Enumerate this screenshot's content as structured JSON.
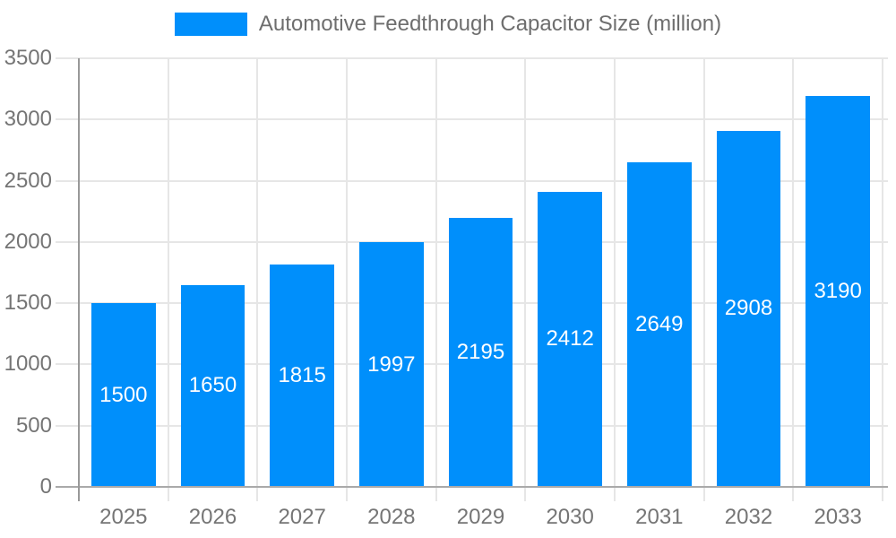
{
  "legend": {
    "label": "Automotive Feedthrough Capacitor Size (million)"
  },
  "chart_data": {
    "type": "bar",
    "title": "Automotive Feedthrough Capacitor Size (million)",
    "categories": [
      "2025",
      "2026",
      "2027",
      "2028",
      "2029",
      "2030",
      "2031",
      "2032",
      "2033"
    ],
    "values": [
      1500,
      1650,
      1815,
      1997,
      2195,
      2412,
      2649,
      2908,
      3190
    ],
    "xlabel": "",
    "ylabel": "",
    "ylim": [
      0,
      3500
    ],
    "y_ticks": [
      0,
      500,
      1000,
      1500,
      2000,
      2500,
      3000,
      3500
    ],
    "grid": true,
    "legend_position": "top",
    "colors": {
      "bar": "#008FFB",
      "value_label": "#FFFFFF",
      "axis_label": "#757575",
      "legend_text": "#6E6E6E",
      "gridline": "#E6E6E6",
      "zero_line": "#AAAAAA",
      "axis_line": "#999999",
      "background": "#FFFFFF"
    }
  }
}
